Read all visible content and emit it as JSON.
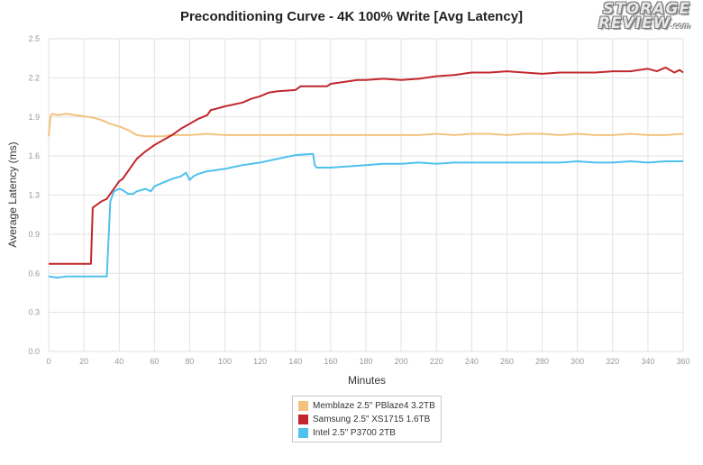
{
  "colors": {
    "memblaze": "#F3C27E",
    "samsung": "#C1272D",
    "intel": "#4FC1EE",
    "grid": "#e2e2e2",
    "axis_text": "#999999"
  },
  "logo": {
    "line1": "STORAGE",
    "line2": "REVIEW",
    "suffix": ".com"
  },
  "chart_data": {
    "type": "line",
    "title": "Preconditioning Curve - 4K 100% Write [Avg Latency]",
    "xlabel": "Minutes",
    "ylabel": "Average Latency (ms)",
    "xlim": [
      0,
      360
    ],
    "ylim": [
      0,
      2.5
    ],
    "x_ticks": [
      "0",
      "20",
      "40",
      "60",
      "80",
      "100",
      "120",
      "140",
      "160",
      "180",
      "200",
      "220",
      "240",
      "260",
      "280",
      "300",
      "320",
      "340",
      "360"
    ],
    "y_ticks": [
      "0.0",
      "0.3",
      "0.6",
      "0.9",
      "1.3",
      "1.6",
      "1.9",
      "2.2",
      "2.5"
    ],
    "grid": true,
    "legend_position": "bottom-center",
    "series": [
      {
        "name": "Memblaze 2.5\" PBlaze4 3.2TB",
        "color_key": "memblaze",
        "points": [
          [
            0,
            1.72
          ],
          [
            1,
            1.88
          ],
          [
            2,
            1.9
          ],
          [
            5,
            1.89
          ],
          [
            10,
            1.9
          ],
          [
            15,
            1.89
          ],
          [
            20,
            1.88
          ],
          [
            25,
            1.87
          ],
          [
            30,
            1.85
          ],
          [
            35,
            1.82
          ],
          [
            40,
            1.8
          ],
          [
            45,
            1.77
          ],
          [
            50,
            1.73
          ],
          [
            55,
            1.72
          ],
          [
            60,
            1.72
          ],
          [
            65,
            1.72
          ],
          [
            70,
            1.73
          ],
          [
            80,
            1.73
          ],
          [
            90,
            1.74
          ],
          [
            100,
            1.73
          ],
          [
            110,
            1.73
          ],
          [
            120,
            1.73
          ],
          [
            130,
            1.73
          ],
          [
            140,
            1.73
          ],
          [
            150,
            1.73
          ],
          [
            160,
            1.73
          ],
          [
            170,
            1.73
          ],
          [
            180,
            1.73
          ],
          [
            190,
            1.73
          ],
          [
            200,
            1.73
          ],
          [
            210,
            1.73
          ],
          [
            220,
            1.74
          ],
          [
            230,
            1.73
          ],
          [
            240,
            1.74
          ],
          [
            250,
            1.74
          ],
          [
            260,
            1.73
          ],
          [
            270,
            1.74
          ],
          [
            280,
            1.74
          ],
          [
            290,
            1.73
          ],
          [
            300,
            1.74
          ],
          [
            310,
            1.73
          ],
          [
            320,
            1.73
          ],
          [
            330,
            1.74
          ],
          [
            340,
            1.73
          ],
          [
            350,
            1.73
          ],
          [
            360,
            1.74
          ]
        ]
      },
      {
        "name": "Samsung 2.5\" XS1715 1.6TB",
        "color_key": "samsung",
        "points": [
          [
            0,
            0.7
          ],
          [
            10,
            0.7
          ],
          [
            20,
            0.7
          ],
          [
            24,
            0.7
          ],
          [
            25,
            1.15
          ],
          [
            28,
            1.18
          ],
          [
            30,
            1.2
          ],
          [
            33,
            1.22
          ],
          [
            35,
            1.26
          ],
          [
            38,
            1.32
          ],
          [
            40,
            1.36
          ],
          [
            42,
            1.38
          ],
          [
            45,
            1.44
          ],
          [
            50,
            1.54
          ],
          [
            55,
            1.6
          ],
          [
            60,
            1.65
          ],
          [
            65,
            1.69
          ],
          [
            70,
            1.73
          ],
          [
            75,
            1.78
          ],
          [
            80,
            1.82
          ],
          [
            85,
            1.86
          ],
          [
            90,
            1.89
          ],
          [
            92,
            1.93
          ],
          [
            95,
            1.94
          ],
          [
            100,
            1.96
          ],
          [
            110,
            1.99
          ],
          [
            115,
            2.02
          ],
          [
            120,
            2.04
          ],
          [
            125,
            2.07
          ],
          [
            130,
            2.08
          ],
          [
            140,
            2.09
          ],
          [
            143,
            2.12
          ],
          [
            150,
            2.12
          ],
          [
            158,
            2.12
          ],
          [
            160,
            2.14
          ],
          [
            170,
            2.16
          ],
          [
            175,
            2.17
          ],
          [
            180,
            2.17
          ],
          [
            190,
            2.18
          ],
          [
            200,
            2.17
          ],
          [
            210,
            2.18
          ],
          [
            220,
            2.2
          ],
          [
            230,
            2.21
          ],
          [
            235,
            2.22
          ],
          [
            240,
            2.23
          ],
          [
            250,
            2.23
          ],
          [
            260,
            2.24
          ],
          [
            270,
            2.23
          ],
          [
            280,
            2.22
          ],
          [
            290,
            2.23
          ],
          [
            300,
            2.23
          ],
          [
            310,
            2.23
          ],
          [
            320,
            2.24
          ],
          [
            330,
            2.24
          ],
          [
            340,
            2.26
          ],
          [
            345,
            2.24
          ],
          [
            350,
            2.27
          ],
          [
            355,
            2.23
          ],
          [
            358,
            2.25
          ],
          [
            360,
            2.23
          ]
        ]
      },
      {
        "name": "Intel 2.5\" P3700 2TB",
        "color_key": "intel",
        "points": [
          [
            0,
            0.6
          ],
          [
            5,
            0.59
          ],
          [
            10,
            0.6
          ],
          [
            20,
            0.6
          ],
          [
            30,
            0.6
          ],
          [
            33,
            0.6
          ],
          [
            35,
            1.2
          ],
          [
            37,
            1.28
          ],
          [
            40,
            1.3
          ],
          [
            42,
            1.29
          ],
          [
            45,
            1.26
          ],
          [
            48,
            1.26
          ],
          [
            50,
            1.28
          ],
          [
            55,
            1.3
          ],
          [
            58,
            1.28
          ],
          [
            60,
            1.32
          ],
          [
            65,
            1.35
          ],
          [
            70,
            1.38
          ],
          [
            75,
            1.4
          ],
          [
            78,
            1.43
          ],
          [
            80,
            1.37
          ],
          [
            82,
            1.4
          ],
          [
            85,
            1.42
          ],
          [
            90,
            1.44
          ],
          [
            100,
            1.46
          ],
          [
            110,
            1.49
          ],
          [
            120,
            1.51
          ],
          [
            130,
            1.54
          ],
          [
            140,
            1.57
          ],
          [
            150,
            1.58
          ],
          [
            151,
            1.49
          ],
          [
            152,
            1.47
          ],
          [
            160,
            1.47
          ],
          [
            170,
            1.48
          ],
          [
            180,
            1.49
          ],
          [
            190,
            1.5
          ],
          [
            200,
            1.5
          ],
          [
            210,
            1.51
          ],
          [
            220,
            1.5
          ],
          [
            230,
            1.51
          ],
          [
            240,
            1.51
          ],
          [
            250,
            1.51
          ],
          [
            260,
            1.51
          ],
          [
            270,
            1.51
          ],
          [
            280,
            1.51
          ],
          [
            290,
            1.51
          ],
          [
            300,
            1.52
          ],
          [
            310,
            1.51
          ],
          [
            320,
            1.51
          ],
          [
            330,
            1.52
          ],
          [
            340,
            1.51
          ],
          [
            350,
            1.52
          ],
          [
            360,
            1.52
          ]
        ]
      }
    ]
  }
}
